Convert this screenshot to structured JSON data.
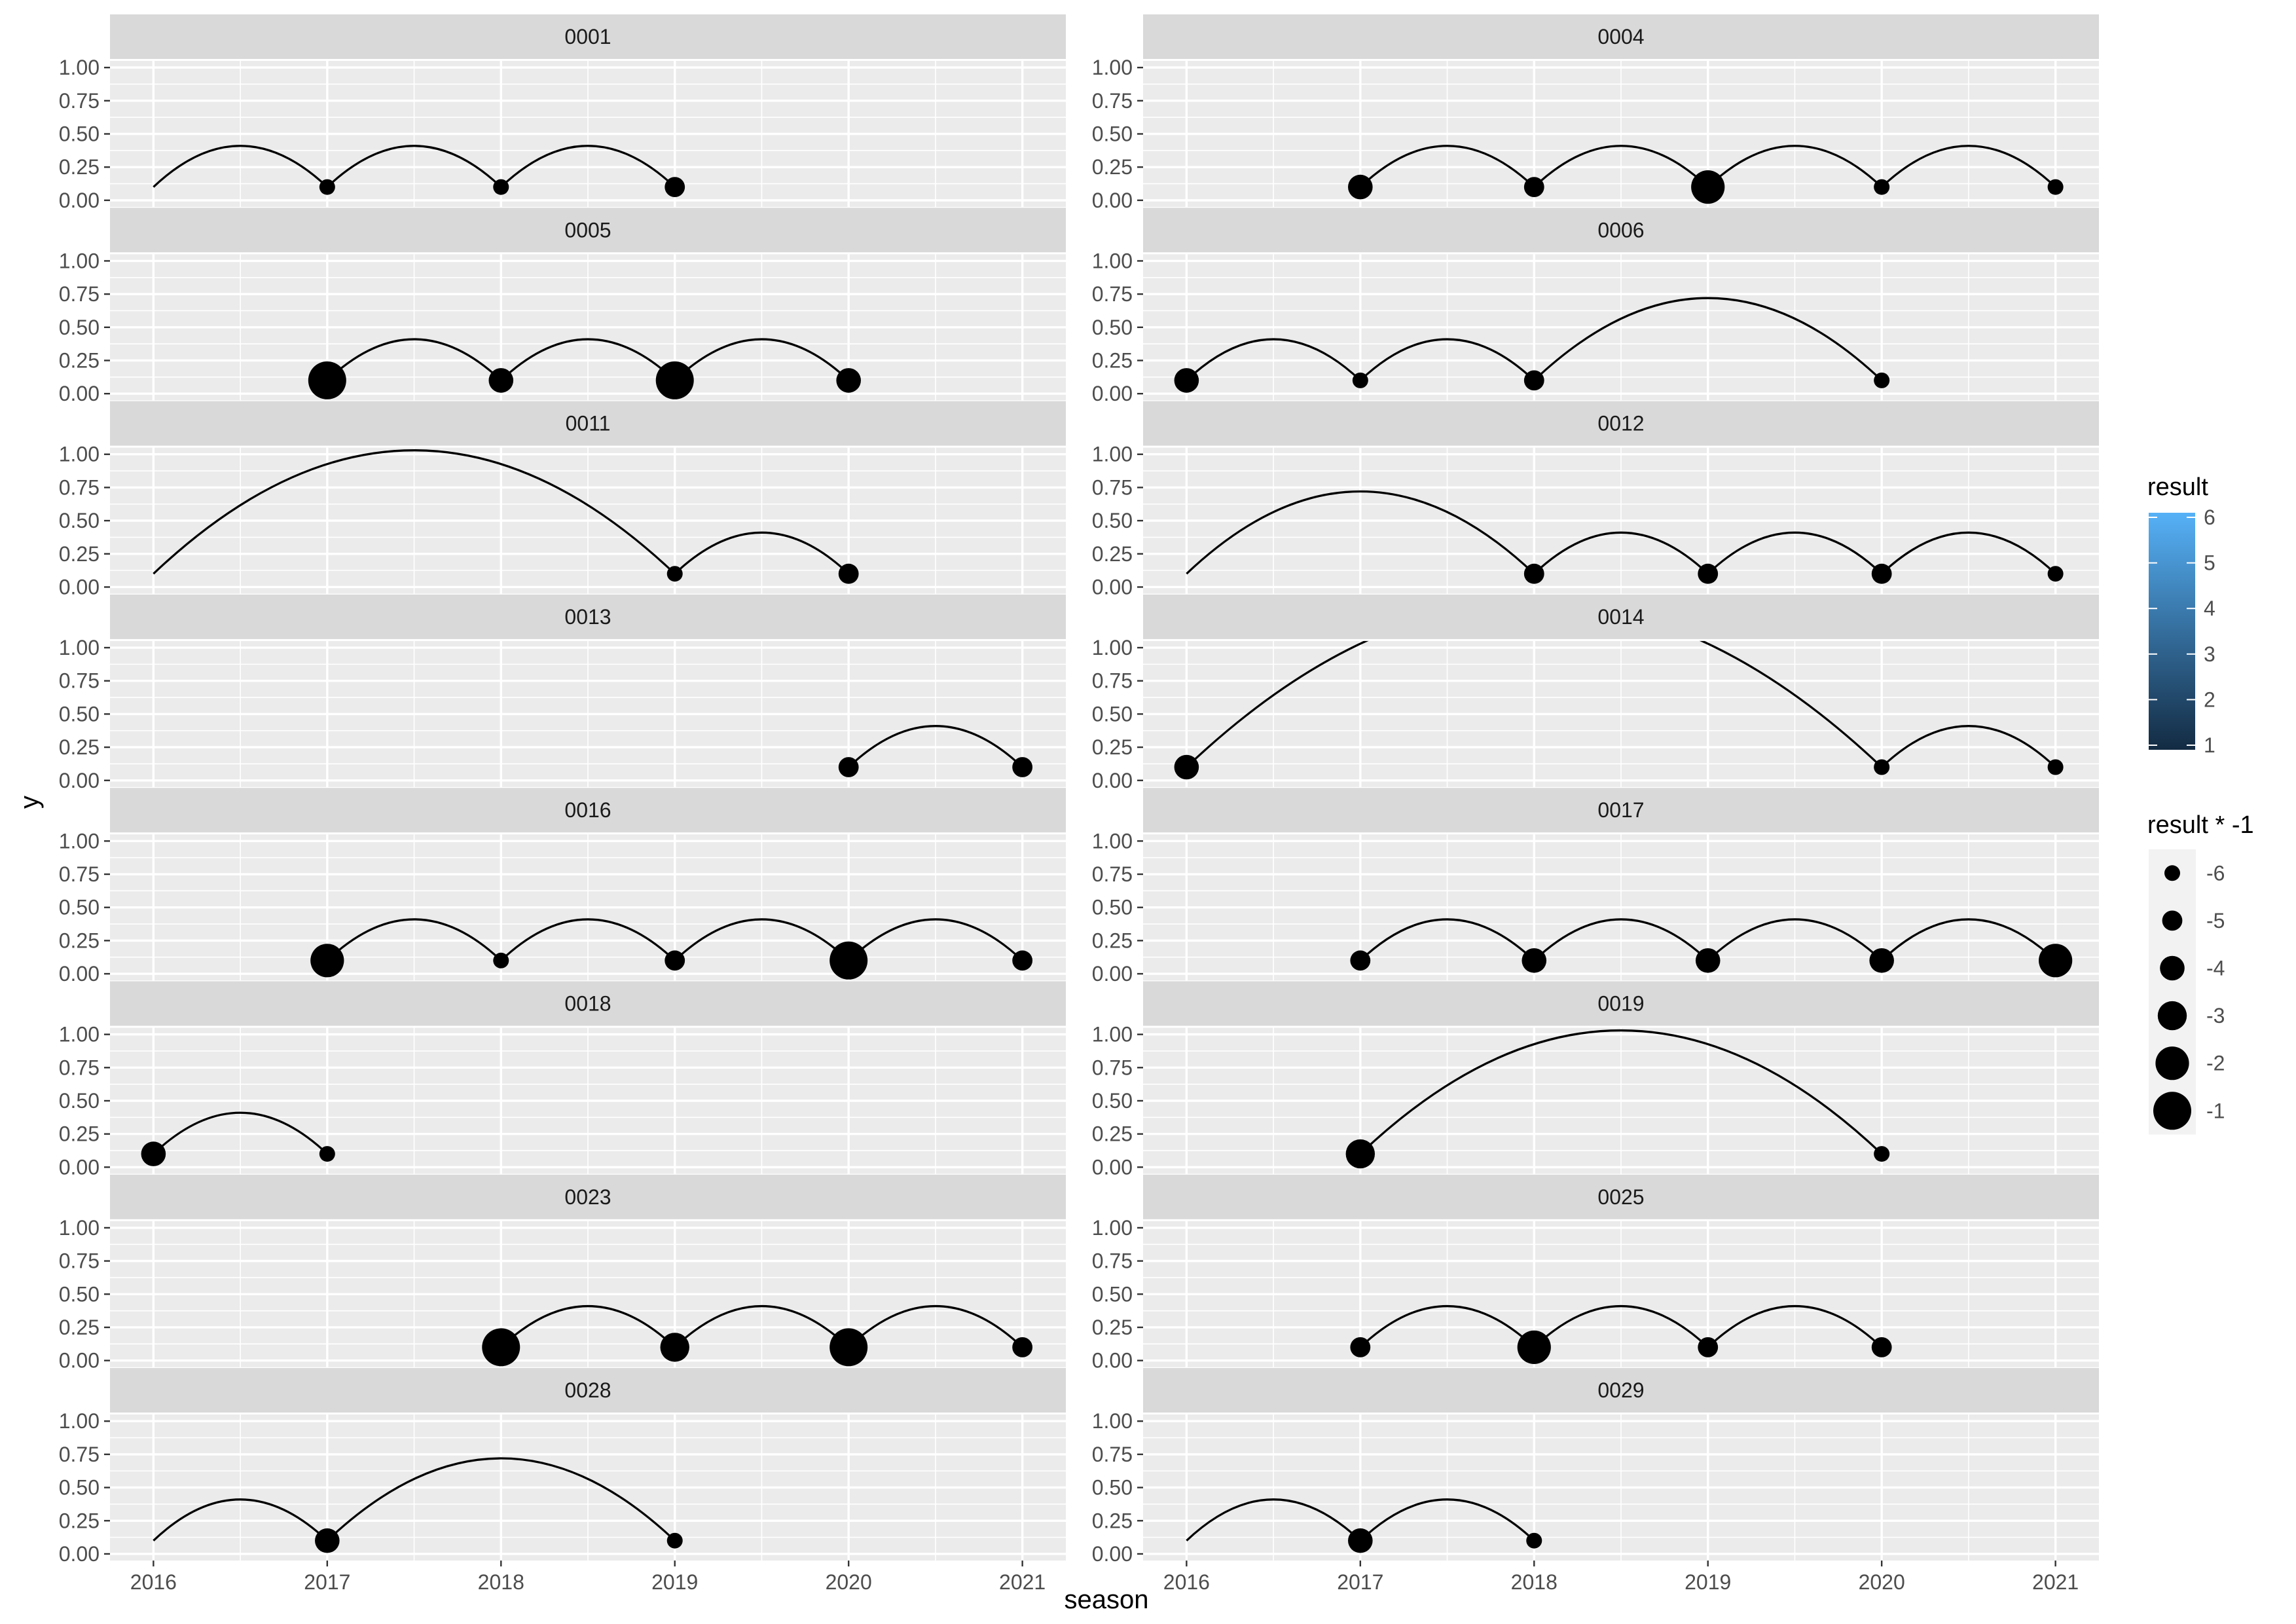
{
  "chart_data": {
    "type": "line",
    "geom": "arc",
    "xlabel": "season",
    "ylabel": "y",
    "x_ticks": [
      2016,
      2017,
      2018,
      2019,
      2020,
      2021
    ],
    "y_ticks": [
      0,
      0.25,
      0.5,
      0.75,
      1.0
    ],
    "y_tick_labels": [
      "0.00",
      "0.25",
      "0.50",
      "0.75",
      "1.00"
    ],
    "xlim": [
      2015.75,
      2021.25
    ],
    "ylim": [
      0,
      1.0
    ],
    "point_y": 0.1,
    "panels": [
      {
        "label": "0001",
        "arcs": [
          [
            2016,
            2017
          ],
          [
            2017,
            2018
          ],
          [
            2018,
            2019
          ]
        ],
        "points": [
          {
            "x": 2017,
            "size": -6
          },
          {
            "x": 2018,
            "size": -6
          },
          {
            "x": 2019,
            "size": -5
          }
        ]
      },
      {
        "label": "0004",
        "arcs": [
          [
            2017,
            2018
          ],
          [
            2018,
            2019
          ],
          [
            2019,
            2020
          ],
          [
            2020,
            2021
          ]
        ],
        "points": [
          {
            "x": 2017,
            "size": -4
          },
          {
            "x": 2018,
            "size": -5
          },
          {
            "x": 2019,
            "size": -2
          },
          {
            "x": 2020,
            "size": -6
          },
          {
            "x": 2021,
            "size": -6
          }
        ]
      },
      {
        "label": "0005",
        "arcs": [
          [
            2017,
            2018
          ],
          [
            2018,
            2019
          ],
          [
            2019,
            2020
          ]
        ],
        "points": [
          {
            "x": 2017,
            "size": -1
          },
          {
            "x": 2018,
            "size": -4
          },
          {
            "x": 2019,
            "size": -1
          },
          {
            "x": 2020,
            "size": -4
          }
        ]
      },
      {
        "label": "0006",
        "arcs": [
          [
            2016,
            2017
          ],
          [
            2017,
            2018
          ],
          [
            2018,
            2020
          ]
        ],
        "points": [
          {
            "x": 2016,
            "size": -4
          },
          {
            "x": 2017,
            "size": -6
          },
          {
            "x": 2018,
            "size": -5
          },
          {
            "x": 2020,
            "size": -6
          }
        ]
      },
      {
        "label": "0011",
        "arcs": [
          [
            2016,
            2019
          ],
          [
            2019,
            2020
          ]
        ],
        "points": [
          {
            "x": 2019,
            "size": -6
          },
          {
            "x": 2020,
            "size": -5
          }
        ]
      },
      {
        "label": "0012",
        "arcs": [
          [
            2016,
            2018
          ],
          [
            2018,
            2019
          ],
          [
            2019,
            2020
          ],
          [
            2020,
            2021
          ]
        ],
        "points": [
          {
            "x": 2018,
            "size": -5
          },
          {
            "x": 2019,
            "size": -5
          },
          {
            "x": 2020,
            "size": -5
          },
          {
            "x": 2021,
            "size": -6
          }
        ]
      },
      {
        "label": "0013",
        "arcs": [
          [
            2020,
            2021
          ]
        ],
        "points": [
          {
            "x": 2020,
            "size": -5
          },
          {
            "x": 2021,
            "size": -5
          }
        ]
      },
      {
        "label": "0014",
        "arcs": [
          [
            2016,
            2020
          ],
          [
            2020,
            2021
          ]
        ],
        "points": [
          {
            "x": 2016,
            "size": -4
          },
          {
            "x": 2020,
            "size": -6
          },
          {
            "x": 2021,
            "size": -6
          }
        ]
      },
      {
        "label": "0016",
        "arcs": [
          [
            2017,
            2018
          ],
          [
            2018,
            2019
          ],
          [
            2019,
            2020
          ],
          [
            2020,
            2021
          ]
        ],
        "points": [
          {
            "x": 2017,
            "size": -2
          },
          {
            "x": 2018,
            "size": -6
          },
          {
            "x": 2019,
            "size": -5
          },
          {
            "x": 2020,
            "size": -1
          },
          {
            "x": 2021,
            "size": -5
          }
        ]
      },
      {
        "label": "0017",
        "arcs": [
          [
            2017,
            2018
          ],
          [
            2018,
            2019
          ],
          [
            2019,
            2020
          ],
          [
            2020,
            2021
          ]
        ],
        "points": [
          {
            "x": 2017,
            "size": -5
          },
          {
            "x": 2018,
            "size": -4
          },
          {
            "x": 2019,
            "size": -4
          },
          {
            "x": 2020,
            "size": -4
          },
          {
            "x": 2021,
            "size": -2
          }
        ]
      },
      {
        "label": "0018",
        "arcs": [
          [
            2016,
            2017
          ]
        ],
        "points": [
          {
            "x": 2016,
            "size": -4
          },
          {
            "x": 2017,
            "size": -6
          }
        ]
      },
      {
        "label": "0019",
        "arcs": [
          [
            2017,
            2020
          ]
        ],
        "points": [
          {
            "x": 2017,
            "size": -3
          },
          {
            "x": 2020,
            "size": -6
          }
        ]
      },
      {
        "label": "0023",
        "arcs": [
          [
            2018,
            2019
          ],
          [
            2019,
            2020
          ],
          [
            2020,
            2021
          ]
        ],
        "points": [
          {
            "x": 2018,
            "size": -1
          },
          {
            "x": 2019,
            "size": -3
          },
          {
            "x": 2020,
            "size": -1
          },
          {
            "x": 2021,
            "size": -5
          }
        ]
      },
      {
        "label": "0025",
        "arcs": [
          [
            2017,
            2018
          ],
          [
            2018,
            2019
          ],
          [
            2019,
            2020
          ]
        ],
        "points": [
          {
            "x": 2017,
            "size": -5
          },
          {
            "x": 2018,
            "size": -2
          },
          {
            "x": 2019,
            "size": -5
          },
          {
            "x": 2020,
            "size": -5
          }
        ]
      },
      {
        "label": "0028",
        "arcs": [
          [
            2016,
            2017
          ],
          [
            2017,
            2019
          ]
        ],
        "points": [
          {
            "x": 2017,
            "size": -4
          },
          {
            "x": 2019,
            "size": -6
          }
        ]
      },
      {
        "label": "0029",
        "arcs": [
          [
            2016,
            2017
          ],
          [
            2017,
            2018
          ]
        ],
        "points": [
          {
            "x": 2017,
            "size": -4
          },
          {
            "x": 2018,
            "size": -6
          }
        ]
      }
    ],
    "legend_color": {
      "title": "result",
      "ticks": [
        1,
        2,
        3,
        4,
        5,
        6
      ],
      "low_color": "#132B43",
      "high_color": "#56B1F7"
    },
    "legend_size": {
      "title": "result * -1",
      "entries": [
        -6,
        -5,
        -4,
        -3,
        -2,
        -1
      ]
    },
    "colors": {
      "panel_bg": "#EBEBEB",
      "strip_bg": "#D9D9D9",
      "grid": "#FFFFFF",
      "mark": "#000000",
      "text": "#4D4D4D",
      "title": "#000000"
    }
  }
}
